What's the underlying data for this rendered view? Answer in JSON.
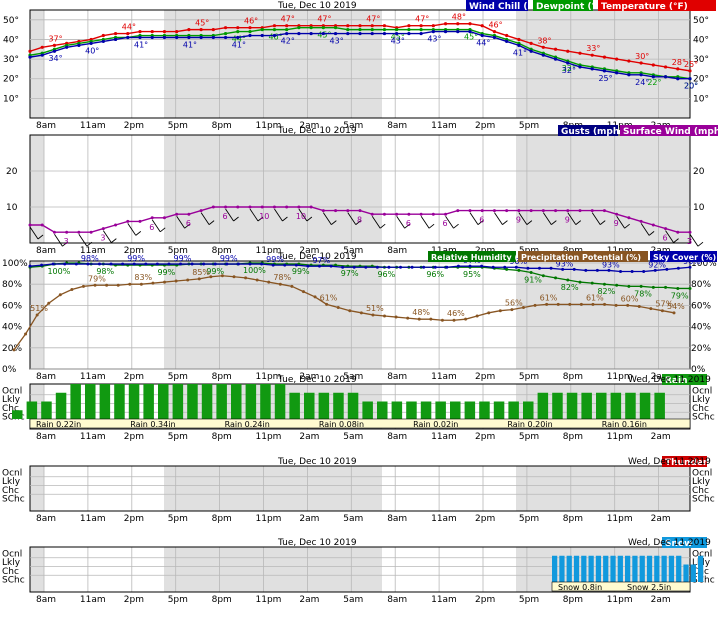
{
  "colors": {
    "temperature": "#e00000",
    "dewpoint": "#009900",
    "wind_chill": "#0000aa",
    "gusts": "#000080",
    "surface_wind": "#990099",
    "humidity": "#007700",
    "precip_potential": "#885522",
    "sky_cover": "#0000aa",
    "rain": "#119911",
    "thunder": "#cc0000",
    "snow": "#1199dd",
    "shade": "#e0e0e0",
    "grid": "#b8b8b8"
  },
  "time_labels": [
    "8am",
    "11am",
    "2pm",
    "5pm",
    "8pm",
    "11pm",
    "2am",
    "5am",
    "8am",
    "11am",
    "2pm",
    "5pm",
    "8pm",
    "11pm",
    "2am",
    "5am"
  ],
  "dates": {
    "day1": "Tue, Dec 10 2019",
    "day2": "Wed, Dec 11 2019"
  },
  "chart_data": [
    {
      "type": "line",
      "title": "Tue, Dec 10 2019",
      "legend": [
        "Wind Chill (°F)",
        "Dewpoint (°F)",
        "Temperature (°F)"
      ],
      "ylim": [
        0,
        55
      ],
      "yticks": [
        "10°",
        "20°",
        "30°",
        "40°",
        "50°"
      ],
      "series": [
        {
          "name": "Temperature (°F)",
          "values": [
            34,
            36,
            37,
            38,
            39,
            40,
            42,
            43,
            43,
            44,
            44,
            44,
            44,
            45,
            45,
            45,
            46,
            46,
            46,
            46,
            47,
            47,
            47,
            47,
            47,
            47,
            47,
            47,
            47,
            47,
            46,
            47,
            47,
            47,
            48,
            48,
            48,
            47,
            44,
            42,
            40,
            38,
            36,
            35,
            34,
            33,
            32,
            31,
            30,
            29,
            28,
            27,
            26,
            25,
            24
          ],
          "labels": [
            [
              2,
              "37°"
            ],
            [
              8,
              "44°"
            ],
            [
              14,
              "45°"
            ],
            [
              18,
              "46°"
            ],
            [
              21,
              "47°"
            ],
            [
              24,
              "47°"
            ],
            [
              28,
              "47°"
            ],
            [
              32,
              "47°"
            ],
            [
              35,
              "48°"
            ],
            [
              38,
              "46°"
            ],
            [
              42,
              "38°"
            ],
            [
              46,
              "33°"
            ],
            [
              50,
              "30°"
            ],
            [
              53,
              "28°"
            ],
            [
              54,
              "25°"
            ]
          ]
        },
        {
          "name": "Dewpoint (°F)",
          "values": [
            32,
            33,
            35,
            37,
            38,
            39,
            40,
            41,
            41,
            42,
            42,
            42,
            42,
            42,
            42,
            42,
            43,
            44,
            44,
            45,
            45,
            45,
            46,
            46,
            46,
            46,
            45,
            45,
            45,
            45,
            45,
            45,
            45,
            45,
            45,
            45,
            45,
            43,
            42,
            40,
            38,
            35,
            33,
            31,
            29,
            27,
            26,
            25,
            24,
            23,
            23,
            22,
            21,
            21,
            20
          ],
          "labels": [
            [
              17,
              "44°"
            ],
            [
              20,
              "46°"
            ],
            [
              24,
              "45°"
            ],
            [
              30,
              "45°"
            ],
            [
              36,
              "45°"
            ],
            [
              44,
              "32°"
            ],
            [
              51,
              "22°"
            ],
            [
              54,
              "20°"
            ]
          ]
        },
        {
          "name": "Wind Chill (°F)",
          "values": [
            31,
            32,
            34,
            36,
            37,
            38,
            39,
            40,
            41,
            41,
            41,
            41,
            41,
            41,
            41,
            41,
            41,
            41,
            42,
            42,
            42,
            43,
            43,
            43,
            43,
            43,
            43,
            43,
            43,
            43,
            43,
            43,
            43,
            44,
            44,
            44,
            44,
            42,
            41,
            39,
            37,
            34,
            32,
            30,
            28,
            26,
            25,
            24,
            23,
            22,
            22,
            21,
            21,
            20,
            20
          ],
          "labels": [
            [
              2,
              "34°"
            ],
            [
              5,
              "40°"
            ],
            [
              9,
              "41°"
            ],
            [
              13,
              "41°"
            ],
            [
              17,
              "41°"
            ],
            [
              21,
              "42°"
            ],
            [
              25,
              "43°"
            ],
            [
              30,
              "43°"
            ],
            [
              33,
              "43°"
            ],
            [
              37,
              "44°"
            ],
            [
              40,
              "41°"
            ],
            [
              44,
              "32°"
            ],
            [
              47,
              "25°"
            ],
            [
              50,
              "24°"
            ],
            [
              54,
              "20°"
            ]
          ]
        }
      ]
    },
    {
      "type": "line",
      "title": "Tue, Dec 10 2019",
      "legend": [
        "Gusts (mph)",
        "Surface Wind (mph)"
      ],
      "ylim": [
        0,
        30
      ],
      "yticks": [
        "10",
        "20"
      ],
      "series": [
        {
          "name": "Surface Wind (mph)",
          "values": [
            5,
            5,
            3,
            3,
            3,
            3,
            4,
            5,
            6,
            6,
            7,
            7,
            8,
            8,
            9,
            10,
            10,
            10,
            10,
            10,
            10,
            10,
            10,
            10,
            9,
            9,
            9,
            9,
            8,
            8,
            8,
            8,
            8,
            8,
            8,
            9,
            9,
            9,
            9,
            9,
            9,
            9,
            9,
            9,
            9,
            9,
            9,
            9,
            8,
            7,
            6,
            5,
            4,
            3,
            3
          ],
          "labels": [
            [
              3,
              "3"
            ],
            [
              6,
              "3"
            ],
            [
              10,
              "6"
            ],
            [
              13,
              "6"
            ],
            [
              16,
              "6"
            ],
            [
              19,
              "10"
            ],
            [
              22,
              "10"
            ],
            [
              27,
              "8"
            ],
            [
              31,
              "6"
            ],
            [
              34,
              "6"
            ],
            [
              37,
              "6"
            ],
            [
              40,
              "9"
            ],
            [
              44,
              "9"
            ],
            [
              48,
              "9"
            ],
            [
              52,
              "6"
            ],
            [
              55,
              "3"
            ],
            [
              59,
              "3"
            ],
            [
              63,
              "3"
            ]
          ]
        }
      ]
    },
    {
      "type": "line",
      "title": "Tue, Dec 10 2019",
      "legend": [
        "Relative Humidity (%)",
        "Precipitation Potential (%)",
        "Sky Cover (%)"
      ],
      "ylim": [
        0,
        100
      ],
      "yticks": [
        "0%",
        "20%",
        "40%",
        "60%",
        "80%",
        "100%"
      ],
      "series": [
        {
          "name": "Relative Humidity (%)",
          "values": [
            96,
            97,
            99,
            100,
            100,
            99,
            99,
            98,
            98,
            98,
            98,
            98,
            98,
            99,
            99,
            99,
            99,
            99,
            100,
            100,
            99,
            99,
            99,
            98,
            98,
            98,
            97,
            97,
            97,
            96,
            96,
            96,
            96,
            96,
            96,
            96,
            96,
            96,
            95,
            94,
            93,
            91,
            88,
            86,
            84,
            82,
            81,
            80,
            79,
            78,
            78,
            77,
            77,
            76,
            76
          ],
          "labels": [
            [
              2,
              "100%"
            ],
            [
              6,
              "98%"
            ],
            [
              11,
              "99%"
            ],
            [
              15,
              "99%"
            ],
            [
              18,
              "100%"
            ],
            [
              22,
              "99%"
            ],
            [
              26,
              "97%"
            ],
            [
              29,
              "96%"
            ],
            [
              33,
              "96%"
            ],
            [
              36,
              "95%"
            ],
            [
              41,
              "91%"
            ],
            [
              44,
              "82%"
            ],
            [
              47,
              "82%"
            ],
            [
              50,
              "78%"
            ],
            [
              53,
              "79%"
            ]
          ]
        },
        {
          "name": "Precipitation Potential (%)",
          "values": [
            18,
            33,
            51,
            62,
            70,
            75,
            78,
            79,
            79,
            79,
            80,
            80,
            81,
            82,
            83,
            84,
            85,
            87,
            88,
            87,
            86,
            84,
            82,
            80,
            78,
            73,
            68,
            61,
            58,
            55,
            53,
            51,
            50,
            49,
            48,
            47,
            47,
            46,
            46,
            47,
            50,
            53,
            55,
            56,
            58,
            60,
            61,
            61,
            61,
            61,
            61,
            61,
            60,
            60,
            59,
            57,
            55,
            53
          ],
          "labels": [
            [
              2,
              "51%"
            ],
            [
              7,
              "79%"
            ],
            [
              11,
              "83%"
            ],
            [
              16,
              "85%"
            ],
            [
              23,
              "78%"
            ],
            [
              27,
              "61%"
            ],
            [
              31,
              "51%"
            ],
            [
              35,
              "48%"
            ],
            [
              38,
              "46%"
            ],
            [
              43,
              "56%"
            ],
            [
              46,
              "61%"
            ],
            [
              50,
              "61%"
            ],
            [
              53,
              "60%"
            ],
            [
              56,
              "57%"
            ],
            [
              57,
              "54%"
            ]
          ]
        },
        {
          "name": "Sky Cover (%)",
          "values": [
            97,
            98,
            99,
            99,
            99,
            99,
            99,
            99,
            99,
            99,
            99,
            99,
            99,
            99,
            99,
            99,
            99,
            99,
            99,
            99,
            99,
            98,
            98,
            98,
            97,
            97,
            97,
            96,
            96,
            96,
            96,
            96,
            96,
            96,
            96,
            96,
            96,
            97,
            97,
            97,
            96,
            96,
            96,
            95,
            95,
            95,
            94,
            94,
            93,
            93,
            93,
            92,
            92,
            92,
            93,
            94,
            95,
            96
          ],
          "labels": [
            [
              5,
              "98%"
            ],
            [
              9,
              "99%"
            ],
            [
              13,
              "99%"
            ],
            [
              17,
              "99%"
            ],
            [
              21,
              "99%"
            ],
            [
              25,
              "97%"
            ],
            [
              38,
              "97%"
            ],
            [
              42,
              "96%"
            ],
            [
              46,
              "93%"
            ],
            [
              50,
              "93%"
            ],
            [
              54,
              "92%"
            ],
            [
              57,
              "96%"
            ]
          ]
        }
      ]
    },
    {
      "type": "bar",
      "title": "Rain",
      "ylevels": [
        "Ocnl",
        "Lkly",
        "Chc",
        "SChc"
      ],
      "values": [
        1,
        2,
        2,
        3,
        4,
        4,
        4,
        4,
        4,
        4,
        4,
        4,
        4,
        4,
        4,
        4,
        4,
        4,
        4,
        3,
        3,
        3,
        3,
        3,
        2,
        2,
        2,
        2,
        2,
        2,
        2,
        2,
        2,
        2,
        2,
        2,
        3,
        3,
        3,
        3,
        3,
        3,
        3,
        3,
        3
      ],
      "amounts": [
        "Rain 0.22in",
        "Rain 0.34in",
        "Rain 0.24in",
        "Rain 0.08in",
        "Rain 0.02in",
        "Rain 0.20in",
        "Rain 0.16in"
      ]
    },
    {
      "type": "bar",
      "title": "Thunder",
      "ylevels": [
        "Ocnl",
        "Lkly",
        "Chc",
        "SChc"
      ],
      "values": []
    },
    {
      "type": "bar",
      "title": "Snow",
      "ylevels": [
        "Ocnl",
        "Lkly",
        "Chc",
        "SChc"
      ],
      "values": [
        3,
        3,
        3,
        3,
        3,
        3,
        3,
        3,
        3,
        3,
        3,
        3,
        3,
        3,
        3,
        3,
        3,
        3,
        2,
        2,
        3
      ],
      "amounts": [
        "Snow 0.8in",
        "Snow 2.5in"
      ]
    }
  ]
}
